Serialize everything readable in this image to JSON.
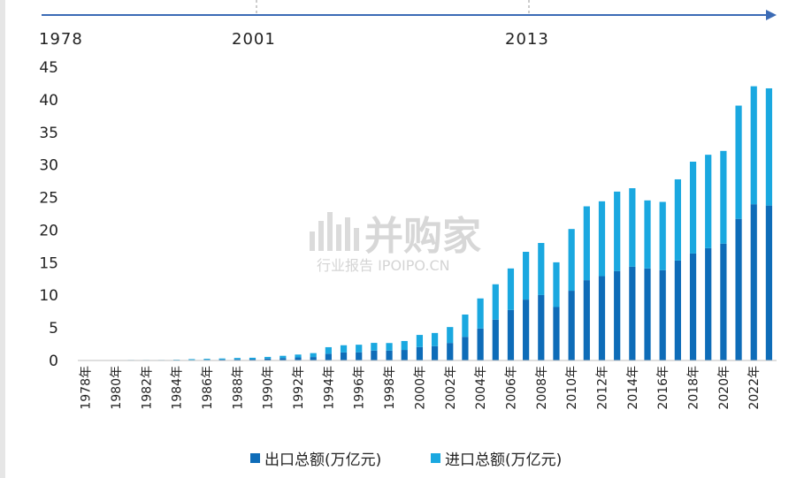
{
  "timeline": {
    "labels": [
      "1978",
      "2001",
      "2013"
    ],
    "color": "#3b6bb5"
  },
  "watermark": {
    "brand": "并购家",
    "sub": "行业报告 IPOIPO.CN"
  },
  "colors": {
    "export": "#0e6cb8",
    "import": "#1aa8e0"
  },
  "chart_data": {
    "type": "bar",
    "stacked": true,
    "title": "",
    "xlabel": "",
    "ylabel": "",
    "ylim": [
      0,
      45
    ],
    "yticks": [
      0,
      5,
      10,
      15,
      20,
      25,
      30,
      35,
      40,
      45
    ],
    "grid": false,
    "legend_position": "bottom",
    "categories": [
      "1978年",
      "1979年",
      "1980年",
      "1981年",
      "1982年",
      "1983年",
      "1984年",
      "1985年",
      "1986年",
      "1987年",
      "1988年",
      "1989年",
      "1990年",
      "1991年",
      "1992年",
      "1993年",
      "1994年",
      "1995年",
      "1996年",
      "1997年",
      "1998年",
      "1999年",
      "2000年",
      "2001年",
      "2002年",
      "2003年",
      "2004年",
      "2005年",
      "2006年",
      "2007年",
      "2008年",
      "2009年",
      "2010年",
      "2011年",
      "2012年",
      "2013年",
      "2014年",
      "2015年",
      "2016年",
      "2017年",
      "2018年",
      "2019年",
      "2020年",
      "2021年",
      "2022年",
      "2023年"
    ],
    "xtick_labels": [
      "1978年",
      "1980年",
      "1982年",
      "1984年",
      "1986年",
      "1988年",
      "1990年",
      "1992年",
      "1994年",
      "1996年",
      "1998年",
      "2000年",
      "2002年",
      "2004年",
      "2006年",
      "2008年",
      "2010年",
      "2012年",
      "2014年",
      "2016年",
      "2018年",
      "2020年",
      "2022年"
    ],
    "series": [
      {
        "name": "出口总额(万亿元)",
        "values": [
          0.02,
          0.02,
          0.03,
          0.04,
          0.04,
          0.04,
          0.06,
          0.08,
          0.11,
          0.15,
          0.18,
          0.2,
          0.3,
          0.38,
          0.47,
          0.53,
          1.04,
          1.24,
          1.26,
          1.52,
          1.52,
          1.62,
          2.06,
          2.2,
          2.69,
          3.63,
          4.91,
          6.26,
          7.75,
          9.34,
          10.04,
          8.2,
          10.7,
          12.32,
          12.94,
          13.72,
          14.39,
          14.12,
          13.84,
          15.33,
          16.41,
          17.23,
          17.93,
          21.73,
          23.97,
          23.77
        ]
      },
      {
        "name": "进口总额(万亿元)",
        "values": [
          0.02,
          0.02,
          0.03,
          0.04,
          0.04,
          0.04,
          0.06,
          0.13,
          0.15,
          0.16,
          0.21,
          0.22,
          0.25,
          0.34,
          0.44,
          0.6,
          1.0,
          1.1,
          1.16,
          1.18,
          1.16,
          1.37,
          1.86,
          2.02,
          2.44,
          3.42,
          4.61,
          5.43,
          6.37,
          7.33,
          7.99,
          6.86,
          9.47,
          11.33,
          11.48,
          12.19,
          12.04,
          10.44,
          10.49,
          12.46,
          14.09,
          14.33,
          14.22,
          17.37,
          18.1,
          17.98
        ]
      }
    ]
  }
}
